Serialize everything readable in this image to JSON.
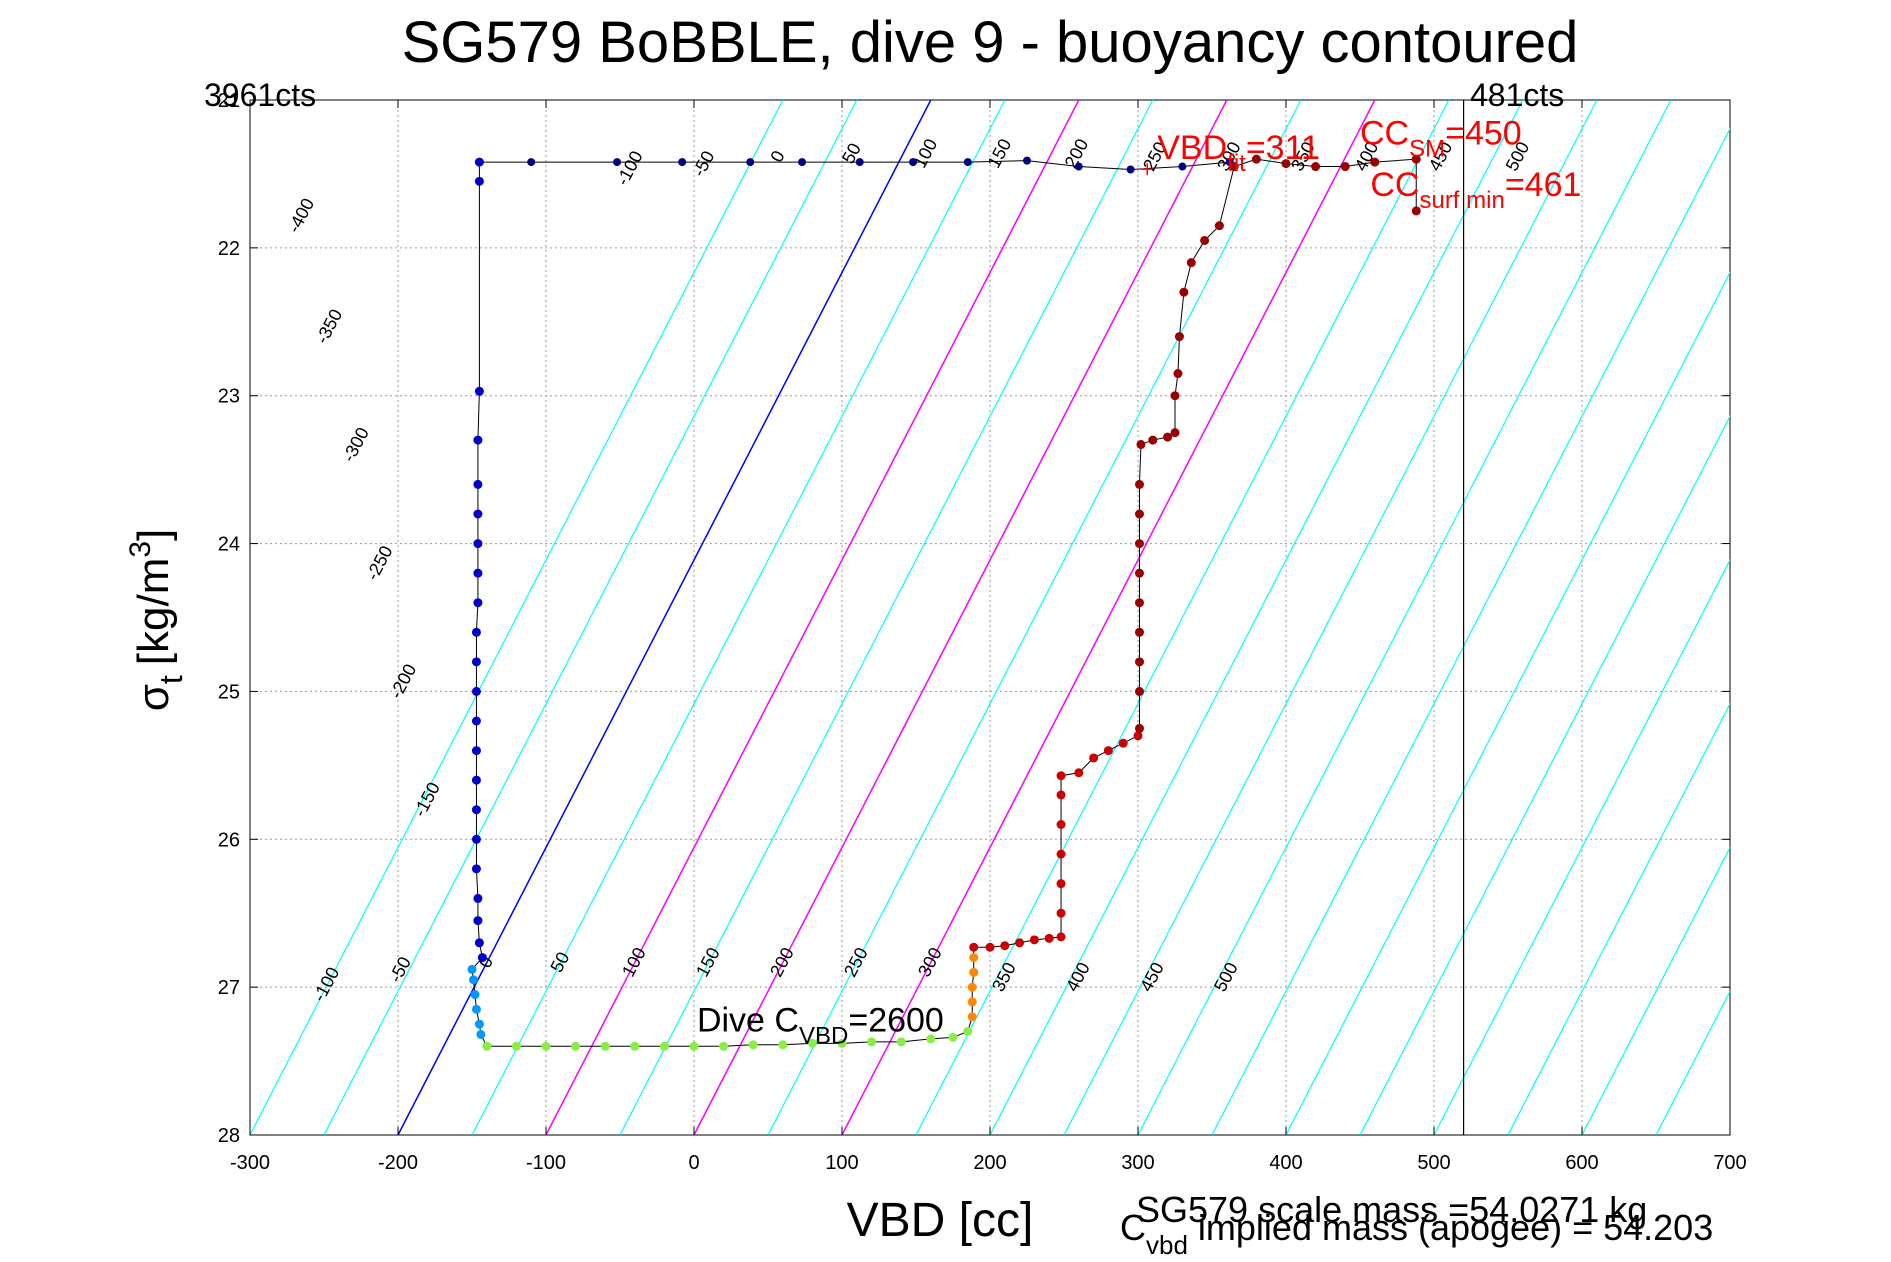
{
  "chart_data": {
    "type": "scatter",
    "title": "SG579 BoBBLE, dive 9 - buoyancy contoured",
    "xlabel": "VBD [cc]",
    "ylabel_main": "σ",
    "ylabel_sub": "t",
    "ylabel_units": "[kg/m",
    "ylabel_sup": "3",
    "ylabel_close": "]",
    "xlim": [
      -300,
      700
    ],
    "ylim": [
      21,
      28
    ],
    "y_reversed": true,
    "grid": true,
    "x_ticks": [
      "-300",
      "-200",
      "-100",
      "0",
      "100",
      "200",
      "300",
      "400",
      "500",
      "600",
      "700"
    ],
    "y_ticks": [
      "21",
      "22",
      "23",
      "24",
      "25",
      "26",
      "27",
      "28"
    ],
    "corner_labels": {
      "left": "3961cts",
      "right": "481cts"
    },
    "vertical_marker_x": 520,
    "reference_lines": [
      {
        "name": "zero-buoyancy",
        "color": "#0000ff",
        "points": [
          [
            -200,
            28
          ],
          [
            160,
            21
          ]
        ]
      },
      {
        "name": "magenta-1",
        "color": "#ff00ff",
        "points": [
          [
            -100,
            28
          ],
          [
            260,
            21
          ]
        ]
      },
      {
        "name": "magenta-2",
        "color": "#ff00ff",
        "points": [
          [
            0,
            28
          ],
          [
            360,
            21
          ]
        ]
      },
      {
        "name": "magenta-3",
        "color": "#ff00ff",
        "points": [
          [
            100,
            28
          ],
          [
            460,
            21
          ]
        ]
      }
    ],
    "contours": {
      "color": "#00ffff",
      "x_at_28_start": -300,
      "x_at_28_end": 820,
      "spacing": 50,
      "dx_per_unit_sigma": 51.43,
      "upper_labels": [
        {
          "text": "-400",
          "x": -262,
          "y": 21.8
        },
        {
          "text": "-350",
          "x": -243,
          "y": 22.55
        },
        {
          "text": "-300",
          "x": -225,
          "y": 23.35
        },
        {
          "text": "-250",
          "x": -209,
          "y": 24.15
        },
        {
          "text": "-200",
          "x": -193,
          "y": 24.95
        },
        {
          "text": "-150",
          "x": -177,
          "y": 25.75
        },
        {
          "text": "-100",
          "x": -40,
          "y": 21.48
        },
        {
          "text": "-50",
          "x": 10,
          "y": 21.45
        },
        {
          "text": "0",
          "x": 60,
          "y": 21.4
        },
        {
          "text": "50",
          "x": 110,
          "y": 21.38
        },
        {
          "text": "100",
          "x": 160,
          "y": 21.38
        },
        {
          "text": "150",
          "x": 210,
          "y": 21.38
        },
        {
          "text": "200",
          "x": 262,
          "y": 21.38
        },
        {
          "text": "250",
          "x": 315,
          "y": 21.4
        },
        {
          "text": "300",
          "x": 365,
          "y": 21.4
        },
        {
          "text": "350",
          "x": 415,
          "y": 21.4
        },
        {
          "text": "400",
          "x": 458,
          "y": 21.4
        },
        {
          "text": "450",
          "x": 508,
          "y": 21.4
        },
        {
          "text": "500",
          "x": 560,
          "y": 21.4
        }
      ],
      "lower_labels": [
        {
          "text": "-100",
          "x": -245,
          "y": 27.0
        },
        {
          "text": "-50",
          "x": -195,
          "y": 26.9
        },
        {
          "text": "0",
          "x": -137,
          "y": 26.85
        },
        {
          "text": "50",
          "x": -87,
          "y": 26.85
        },
        {
          "text": "100",
          "x": -37,
          "y": 26.85
        },
        {
          "text": "150",
          "x": 13,
          "y": 26.85
        },
        {
          "text": "200",
          "x": 63,
          "y": 26.85
        },
        {
          "text": "250",
          "x": 113,
          "y": 26.85
        },
        {
          "text": "300",
          "x": 163,
          "y": 26.85
        },
        {
          "text": "350",
          "x": 213,
          "y": 26.95
        },
        {
          "text": "400",
          "x": 263,
          "y": 26.95
        },
        {
          "text": "450",
          "x": 313,
          "y": 26.95
        },
        {
          "text": "500",
          "x": 363,
          "y": 26.95
        }
      ]
    },
    "series": [
      {
        "name": "dive",
        "color": "#0000cc",
        "points": [
          [
            -145,
            21.42
          ],
          [
            -145,
            21.55
          ],
          [
            -145,
            22.97
          ],
          [
            -146,
            23.3
          ],
          [
            -146,
            23.6
          ],
          [
            -146,
            23.8
          ],
          [
            -146,
            24.0
          ],
          [
            -146,
            24.2
          ],
          [
            -146,
            24.4
          ],
          [
            -147,
            24.6
          ],
          [
            -147,
            24.8
          ],
          [
            -147,
            25.0
          ],
          [
            -147,
            25.2
          ],
          [
            -147,
            25.4
          ],
          [
            -147,
            25.6
          ],
          [
            -147,
            25.8
          ],
          [
            -147,
            26.0
          ],
          [
            -147,
            26.2
          ],
          [
            -146,
            26.4
          ],
          [
            -146,
            26.55
          ],
          [
            -145,
            26.7
          ],
          [
            -143,
            26.8
          ]
        ]
      },
      {
        "name": "dive-bottom",
        "color": "#0099ff",
        "points": [
          [
            -150,
            26.88
          ],
          [
            -149,
            26.95
          ],
          [
            -148,
            27.05
          ],
          [
            -147,
            27.15
          ],
          [
            -145,
            27.25
          ],
          [
            -144,
            27.32
          ]
        ]
      },
      {
        "name": "apogee",
        "color": "#88ee44",
        "points": [
          [
            -140,
            27.4
          ],
          [
            -120,
            27.4
          ],
          [
            -100,
            27.4
          ],
          [
            -80,
            27.4
          ],
          [
            -60,
            27.4
          ],
          [
            -40,
            27.4
          ],
          [
            -20,
            27.4
          ],
          [
            0,
            27.4
          ],
          [
            20,
            27.4
          ],
          [
            40,
            27.39
          ],
          [
            60,
            27.39
          ],
          [
            80,
            27.38
          ],
          [
            100,
            27.38
          ],
          [
            120,
            27.37
          ],
          [
            140,
            27.37
          ],
          [
            160,
            27.35
          ],
          [
            175,
            27.34
          ],
          [
            185,
            27.3
          ]
        ]
      },
      {
        "name": "climb-lower",
        "color": "#ff8800",
        "points": [
          [
            188,
            27.2
          ],
          [
            188,
            27.1
          ],
          [
            188,
            27.0
          ],
          [
            189,
            26.9
          ],
          [
            189,
            26.8
          ]
        ]
      },
      {
        "name": "climb",
        "color": "#cc0000",
        "points": [
          [
            189,
            26.73
          ],
          [
            200,
            26.73
          ],
          [
            210,
            26.72
          ],
          [
            220,
            26.7
          ],
          [
            230,
            26.68
          ],
          [
            240,
            26.67
          ],
          [
            248,
            26.66
          ],
          [
            248,
            26.5
          ],
          [
            248,
            26.3
          ],
          [
            248,
            26.1
          ],
          [
            248,
            25.9
          ],
          [
            248,
            25.7
          ],
          [
            248,
            25.57
          ],
          [
            260,
            25.55
          ],
          [
            270,
            25.45
          ],
          [
            280,
            25.4
          ],
          [
            290,
            25.35
          ],
          [
            300,
            25.3
          ]
        ]
      },
      {
        "name": "climb-upper",
        "color": "#990000",
        "points": [
          [
            301,
            25.25
          ],
          [
            301,
            25.0
          ],
          [
            301,
            24.8
          ],
          [
            301,
            24.6
          ],
          [
            301,
            24.4
          ],
          [
            301,
            24.2
          ],
          [
            301,
            24.0
          ],
          [
            301,
            23.8
          ],
          [
            301,
            23.6
          ],
          [
            302,
            23.33
          ],
          [
            310,
            23.3
          ],
          [
            320,
            23.28
          ],
          [
            325,
            23.25
          ],
          [
            325,
            23.0
          ],
          [
            327,
            22.85
          ],
          [
            328,
            22.6
          ],
          [
            331,
            22.3
          ],
          [
            336,
            22.1
          ],
          [
            345,
            21.95
          ],
          [
            355,
            21.85
          ],
          [
            365,
            21.45
          ],
          [
            380,
            21.4
          ],
          [
            400,
            21.43
          ],
          [
            420,
            21.45
          ],
          [
            440,
            21.45
          ],
          [
            460,
            21.42
          ],
          [
            488,
            21.4
          ],
          [
            488,
            21.75
          ]
        ]
      }
    ],
    "surface_trace": {
      "color": "#000080",
      "points": [
        [
          -145,
          21.42
        ],
        [
          -110,
          21.42
        ],
        [
          -52,
          21.42
        ],
        [
          -8,
          21.42
        ],
        [
          38,
          21.42
        ],
        [
          73,
          21.42
        ],
        [
          112,
          21.42
        ],
        [
          148,
          21.42
        ],
        [
          185,
          21.42
        ],
        [
          225,
          21.41
        ],
        [
          260,
          21.45
        ],
        [
          295,
          21.47
        ],
        [
          330,
          21.45
        ],
        [
          362,
          21.42
        ]
      ]
    },
    "annotations": {
      "vbd_fit": {
        "prefix": "VBD",
        "sub": "fit",
        "value": "=311",
        "x": 313,
        "y": 21.4
      },
      "cc_sm": {
        "prefix": "CC",
        "sub": "SM",
        "value": "=450",
        "x": 450,
        "y": 21.3
      },
      "cc_surf": {
        "prefix": "CC",
        "sub": "surf min",
        "value": "=461",
        "x": 457,
        "y": 21.65
      },
      "dive_cvbd": {
        "prefix": "Dive C",
        "sub": "VBD",
        "value": "=2600",
        "x": 2,
        "y": 27.3
      }
    },
    "footer": {
      "scale_mass": "SG579 scale mass =54.0271 kg",
      "implied_prefix": "C",
      "implied_sub": "vbd",
      "implied_rest": " implied mass (apogee) = 54.203"
    }
  }
}
